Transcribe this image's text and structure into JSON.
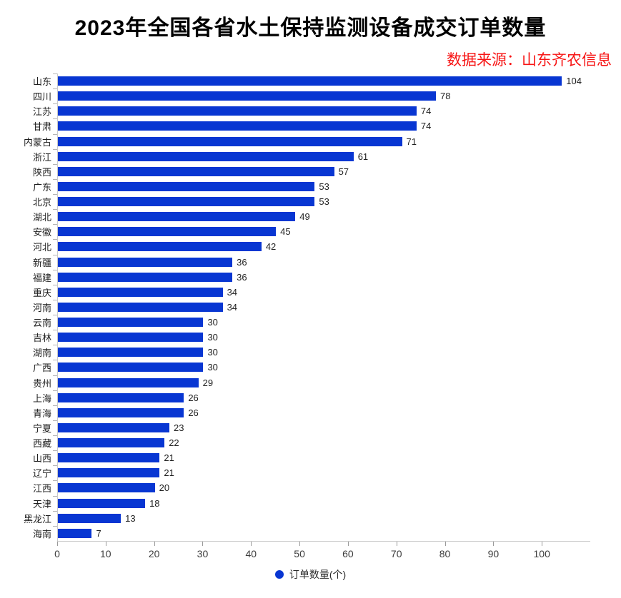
{
  "header": {
    "title": "2023年全国各省水土保持监测设备成交订单数量",
    "source": "数据来源：山东齐农信息",
    "source_color": "#f71414",
    "title_color": "#000000"
  },
  "chart_data": {
    "type": "bar",
    "orientation": "horizontal",
    "title": "2023年全国各省水土保持监测设备成交订单数量",
    "categories": [
      "山东",
      "四川",
      "江苏",
      "甘肃",
      "内蒙古",
      "浙江",
      "陕西",
      "广东",
      "北京",
      "湖北",
      "安徽",
      "河北",
      "新疆",
      "福建",
      "重庆",
      "河南",
      "云南",
      "吉林",
      "湖南",
      "广西",
      "贵州",
      "上海",
      "青海",
      "宁夏",
      "西藏",
      "山西",
      "辽宁",
      "江西",
      "天津",
      "黑龙江",
      "海南"
    ],
    "values": [
      104,
      78,
      74,
      74,
      71,
      61,
      57,
      53,
      53,
      49,
      45,
      42,
      36,
      36,
      34,
      34,
      30,
      30,
      30,
      30,
      29,
      26,
      26,
      23,
      22,
      21,
      21,
      20,
      18,
      13,
      7
    ],
    "series_name": "订单数量(个)",
    "bar_color": "#0836d2",
    "value_label_color": "#1f1f1f",
    "xlabel": "",
    "ylabel": "",
    "xlim": [
      0,
      110
    ],
    "x_ticks": [
      0,
      10,
      20,
      30,
      40,
      50,
      60,
      70,
      80,
      90,
      100
    ],
    "value_labels": true,
    "grid": false,
    "legend_position": "bottom"
  },
  "legend": {
    "label": "订单数量(个)",
    "dot_color": "#0836d2"
  }
}
